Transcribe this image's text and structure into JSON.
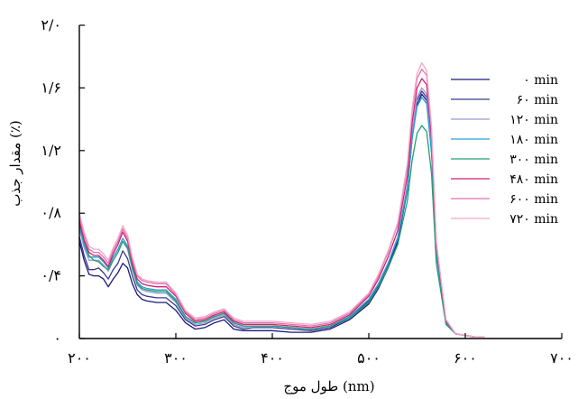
{
  "chart_data": {
    "type": "line",
    "title": "",
    "xlabel": "طول موج (nm)",
    "ylabel": "مقدار جذب (٪)",
    "xlim": [
      200,
      700
    ],
    "ylim": [
      0,
      2.0
    ],
    "x_ticks": [
      {
        "value": 200,
        "label": "۲۰۰"
      },
      {
        "value": 300,
        "label": "۳۰۰"
      },
      {
        "value": 400,
        "label": "۴۰۰"
      },
      {
        "value": 500,
        "label": "۵۰۰"
      },
      {
        "value": 600,
        "label": "۶۰۰"
      },
      {
        "value": 700,
        "label": "۷۰۰"
      }
    ],
    "y_ticks": [
      {
        "value": 0,
        "label": "۰"
      },
      {
        "value": 0.4,
        "label": "۰/۴"
      },
      {
        "value": 0.8,
        "label": "۰/۸"
      },
      {
        "value": 1.2,
        "label": "۱/۲"
      },
      {
        "value": 1.6,
        "label": "۱/۶"
      },
      {
        "value": 2.0,
        "label": "۲/۰"
      }
    ],
    "grid": false,
    "legend_position": "right",
    "x": [
      200,
      205,
      210,
      215,
      220,
      225,
      230,
      235,
      240,
      245,
      250,
      255,
      260,
      265,
      270,
      280,
      290,
      300,
      310,
      320,
      330,
      340,
      350,
      360,
      370,
      380,
      400,
      420,
      440,
      460,
      480,
      500,
      510,
      520,
      530,
      540,
      545,
      550,
      555,
      560,
      565,
      570,
      580,
      590,
      600,
      610,
      620
    ],
    "series": [
      {
        "name": "۰ min",
        "color": "#1a1a80",
        "values": [
          0.62,
          0.5,
          0.41,
          0.4,
          0.4,
          0.38,
          0.33,
          0.38,
          0.42,
          0.48,
          0.45,
          0.35,
          0.28,
          0.25,
          0.24,
          0.23,
          0.23,
          0.18,
          0.1,
          0.06,
          0.07,
          0.1,
          0.12,
          0.06,
          0.05,
          0.05,
          0.05,
          0.04,
          0.04,
          0.06,
          0.12,
          0.22,
          0.32,
          0.45,
          0.62,
          0.95,
          1.28,
          1.49,
          1.56,
          1.52,
          1.2,
          0.55,
          0.1,
          0.03,
          0.02,
          0.01,
          0.01
        ]
      },
      {
        "name": "۶۰ min",
        "color": "#3a3a90",
        "values": [
          0.65,
          0.53,
          0.44,
          0.44,
          0.45,
          0.42,
          0.38,
          0.44,
          0.48,
          0.56,
          0.51,
          0.4,
          0.31,
          0.28,
          0.27,
          0.26,
          0.26,
          0.21,
          0.12,
          0.08,
          0.09,
          0.12,
          0.14,
          0.08,
          0.06,
          0.07,
          0.07,
          0.06,
          0.05,
          0.07,
          0.13,
          0.24,
          0.34,
          0.47,
          0.64,
          0.97,
          1.3,
          1.52,
          1.58,
          1.54,
          1.22,
          0.56,
          0.1,
          0.03,
          0.02,
          0.01,
          0.01
        ]
      },
      {
        "name": "۱۲۰ min",
        "color": "#9a9ad0",
        "values": [
          0.7,
          0.58,
          0.5,
          0.5,
          0.5,
          0.47,
          0.43,
          0.5,
          0.55,
          0.62,
          0.57,
          0.44,
          0.34,
          0.31,
          0.3,
          0.29,
          0.29,
          0.23,
          0.13,
          0.09,
          0.1,
          0.13,
          0.15,
          0.09,
          0.07,
          0.08,
          0.08,
          0.07,
          0.06,
          0.08,
          0.14,
          0.25,
          0.35,
          0.48,
          0.65,
          0.98,
          1.32,
          1.54,
          1.6,
          1.56,
          1.23,
          0.57,
          0.11,
          0.03,
          0.02,
          0.01,
          0.01
        ]
      },
      {
        "name": "۱۸۰ min",
        "color": "#2aa0d8",
        "values": [
          0.72,
          0.6,
          0.52,
          0.52,
          0.52,
          0.49,
          0.45,
          0.52,
          0.57,
          0.64,
          0.59,
          0.46,
          0.36,
          0.33,
          0.32,
          0.31,
          0.31,
          0.25,
          0.14,
          0.1,
          0.11,
          0.14,
          0.16,
          0.1,
          0.08,
          0.08,
          0.08,
          0.07,
          0.06,
          0.08,
          0.14,
          0.25,
          0.35,
          0.48,
          0.64,
          0.96,
          1.28,
          1.48,
          1.54,
          1.5,
          1.18,
          0.54,
          0.1,
          0.03,
          0.02,
          0.01,
          0.01
        ]
      },
      {
        "name": "۳۰۰ min",
        "color": "#20a070",
        "values": [
          0.74,
          0.62,
          0.53,
          0.5,
          0.49,
          0.46,
          0.44,
          0.5,
          0.55,
          0.62,
          0.58,
          0.45,
          0.35,
          0.32,
          0.31,
          0.3,
          0.3,
          0.24,
          0.14,
          0.1,
          0.11,
          0.14,
          0.16,
          0.1,
          0.08,
          0.08,
          0.08,
          0.07,
          0.06,
          0.08,
          0.13,
          0.23,
          0.33,
          0.45,
          0.6,
          0.88,
          1.14,
          1.31,
          1.36,
          1.32,
          1.05,
          0.48,
          0.09,
          0.03,
          0.02,
          0.01,
          0.01
        ]
      },
      {
        "name": "۴۸۰ min",
        "color": "#d02070",
        "values": [
          0.75,
          0.63,
          0.55,
          0.53,
          0.53,
          0.5,
          0.46,
          0.54,
          0.6,
          0.68,
          0.62,
          0.48,
          0.38,
          0.35,
          0.34,
          0.33,
          0.33,
          0.27,
          0.16,
          0.11,
          0.12,
          0.15,
          0.17,
          0.11,
          0.09,
          0.09,
          0.09,
          0.08,
          0.07,
          0.09,
          0.15,
          0.27,
          0.38,
          0.52,
          0.69,
          1.04,
          1.38,
          1.6,
          1.66,
          1.62,
          1.28,
          0.59,
          0.11,
          0.03,
          0.02,
          0.01,
          0.01
        ]
      },
      {
        "name": "۶۰۰ min",
        "color": "#e070b0",
        "values": [
          0.78,
          0.66,
          0.57,
          0.55,
          0.55,
          0.52,
          0.48,
          0.56,
          0.62,
          0.7,
          0.64,
          0.5,
          0.4,
          0.37,
          0.36,
          0.35,
          0.35,
          0.28,
          0.17,
          0.12,
          0.13,
          0.16,
          0.18,
          0.12,
          0.1,
          0.1,
          0.1,
          0.09,
          0.08,
          0.1,
          0.16,
          0.28,
          0.4,
          0.55,
          0.73,
          1.1,
          1.45,
          1.66,
          1.72,
          1.68,
          1.32,
          0.61,
          0.12,
          0.03,
          0.02,
          0.01,
          0.01
        ]
      },
      {
        "name": "۷۲۰ min",
        "color": "#f0a8c8",
        "values": [
          0.8,
          0.68,
          0.59,
          0.57,
          0.57,
          0.54,
          0.5,
          0.58,
          0.64,
          0.72,
          0.66,
          0.52,
          0.41,
          0.38,
          0.37,
          0.36,
          0.36,
          0.29,
          0.18,
          0.13,
          0.14,
          0.17,
          0.19,
          0.13,
          0.11,
          0.11,
          0.11,
          0.1,
          0.09,
          0.11,
          0.17,
          0.29,
          0.41,
          0.56,
          0.74,
          1.12,
          1.47,
          1.69,
          1.76,
          1.71,
          1.35,
          0.62,
          0.12,
          0.03,
          0.02,
          0.01,
          0.01
        ]
      }
    ]
  }
}
